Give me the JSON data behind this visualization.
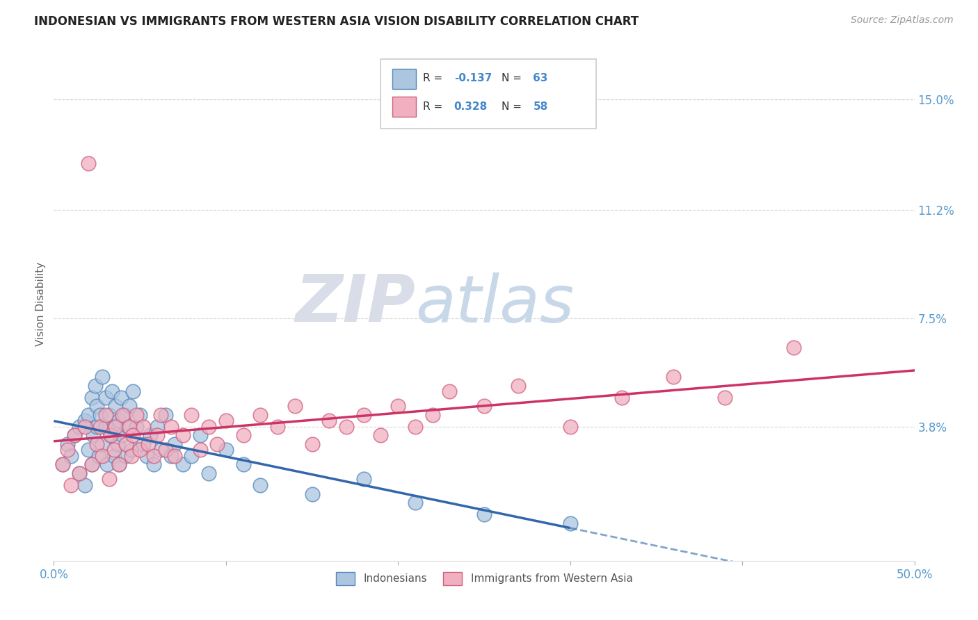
{
  "title": "INDONESIAN VS IMMIGRANTS FROM WESTERN ASIA VISION DISABILITY CORRELATION CHART",
  "source": "Source: ZipAtlas.com",
  "ylabel": "Vision Disability",
  "xlim": [
    0.0,
    0.5
  ],
  "ylim": [
    -0.008,
    0.168
  ],
  "xtick_labels": [
    "0.0%",
    "",
    "",
    "",
    "",
    "50.0%"
  ],
  "yticks_right": [
    0.038,
    0.075,
    0.112,
    0.15
  ],
  "ytick_labels_right": [
    "3.8%",
    "7.5%",
    "11.2%",
    "15.0%"
  ],
  "grid_color": "#cccccc",
  "background_color": "#ffffff",
  "series1_color": "#adc6e0",
  "series1_edge": "#5588bb",
  "series2_color": "#f0b0c0",
  "series2_edge": "#d06080",
  "trend1_color": "#3366aa",
  "trend2_color": "#cc3366",
  "legend_R1": "-0.137",
  "legend_N1": "63",
  "legend_R2": "0.328",
  "legend_N2": "58",
  "watermark_zip": "ZIP",
  "watermark_atlas": "atlas",
  "series1_x": [
    0.005,
    0.008,
    0.01,
    0.012,
    0.015,
    0.015,
    0.018,
    0.018,
    0.02,
    0.02,
    0.022,
    0.022,
    0.023,
    0.024,
    0.025,
    0.025,
    0.026,
    0.027,
    0.028,
    0.028,
    0.03,
    0.03,
    0.031,
    0.032,
    0.033,
    0.034,
    0.035,
    0.035,
    0.036,
    0.037,
    0.038,
    0.038,
    0.039,
    0.04,
    0.041,
    0.042,
    0.043,
    0.044,
    0.045,
    0.046,
    0.048,
    0.05,
    0.052,
    0.054,
    0.056,
    0.058,
    0.06,
    0.062,
    0.065,
    0.068,
    0.07,
    0.075,
    0.08,
    0.085,
    0.09,
    0.1,
    0.11,
    0.12,
    0.15,
    0.18,
    0.21,
    0.25,
    0.3
  ],
  "series1_y": [
    0.025,
    0.032,
    0.028,
    0.035,
    0.038,
    0.022,
    0.04,
    0.018,
    0.042,
    0.03,
    0.048,
    0.025,
    0.035,
    0.052,
    0.038,
    0.045,
    0.028,
    0.042,
    0.055,
    0.032,
    0.038,
    0.048,
    0.025,
    0.042,
    0.035,
    0.05,
    0.028,
    0.038,
    0.045,
    0.032,
    0.04,
    0.025,
    0.048,
    0.035,
    0.042,
    0.028,
    0.038,
    0.045,
    0.03,
    0.05,
    0.038,
    0.042,
    0.032,
    0.028,
    0.035,
    0.025,
    0.038,
    0.03,
    0.042,
    0.028,
    0.032,
    0.025,
    0.028,
    0.035,
    0.022,
    0.03,
    0.025,
    0.018,
    0.015,
    0.02,
    0.012,
    0.008,
    0.005
  ],
  "series2_x": [
    0.005,
    0.008,
    0.01,
    0.012,
    0.015,
    0.018,
    0.02,
    0.022,
    0.025,
    0.027,
    0.028,
    0.03,
    0.032,
    0.033,
    0.035,
    0.036,
    0.038,
    0.04,
    0.042,
    0.044,
    0.045,
    0.046,
    0.048,
    0.05,
    0.052,
    0.055,
    0.058,
    0.06,
    0.062,
    0.065,
    0.068,
    0.07,
    0.075,
    0.08,
    0.085,
    0.09,
    0.095,
    0.1,
    0.11,
    0.12,
    0.13,
    0.14,
    0.15,
    0.16,
    0.17,
    0.18,
    0.19,
    0.2,
    0.21,
    0.22,
    0.23,
    0.25,
    0.27,
    0.3,
    0.33,
    0.36,
    0.39,
    0.43
  ],
  "series2_y": [
    0.025,
    0.03,
    0.018,
    0.035,
    0.022,
    0.038,
    0.128,
    0.025,
    0.032,
    0.038,
    0.028,
    0.042,
    0.02,
    0.035,
    0.03,
    0.038,
    0.025,
    0.042,
    0.032,
    0.038,
    0.028,
    0.035,
    0.042,
    0.03,
    0.038,
    0.032,
    0.028,
    0.035,
    0.042,
    0.03,
    0.038,
    0.028,
    0.035,
    0.042,
    0.03,
    0.038,
    0.032,
    0.04,
    0.035,
    0.042,
    0.038,
    0.045,
    0.032,
    0.04,
    0.038,
    0.042,
    0.035,
    0.045,
    0.038,
    0.042,
    0.05,
    0.045,
    0.052,
    0.038,
    0.048,
    0.055,
    0.048,
    0.065
  ]
}
